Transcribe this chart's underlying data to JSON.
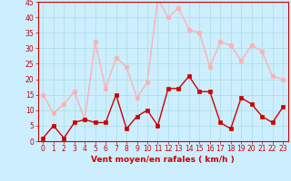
{
  "x": [
    0,
    1,
    2,
    3,
    4,
    5,
    6,
    7,
    8,
    9,
    10,
    11,
    12,
    13,
    14,
    15,
    16,
    17,
    18,
    19,
    20,
    21,
    22,
    23
  ],
  "wind_mean": [
    1,
    5,
    1,
    6,
    7,
    6,
    6,
    15,
    4,
    8,
    10,
    5,
    17,
    17,
    21,
    16,
    16,
    6,
    4,
    14,
    12,
    8,
    6,
    11
  ],
  "wind_gust": [
    15,
    9,
    12,
    16,
    7,
    32,
    17,
    27,
    24,
    14,
    19,
    46,
    40,
    43,
    36,
    35,
    24,
    32,
    31,
    26,
    31,
    29,
    21,
    20
  ],
  "xlabel": "Vent moyen/en rafales ( km/h )",
  "xlim_min": -0.5,
  "xlim_max": 23.5,
  "ylim_min": 0,
  "ylim_max": 45,
  "yticks": [
    0,
    5,
    10,
    15,
    20,
    25,
    30,
    35,
    40,
    45
  ],
  "xticks": [
    0,
    1,
    2,
    3,
    4,
    5,
    6,
    7,
    8,
    9,
    10,
    11,
    12,
    13,
    14,
    15,
    16,
    17,
    18,
    19,
    20,
    21,
    22,
    23
  ],
  "mean_color": "#cc0000",
  "gust_color": "#ffb0b0",
  "bg_color": "#cceeff",
  "grid_color": "#aadddd",
  "axis_color": "#cc0000",
  "tick_color": "#cc0000",
  "label_color": "#cc0000",
  "marker_size": 2.5,
  "line_width": 1.0,
  "tick_fontsize": 5.5,
  "xlabel_fontsize": 6.5
}
